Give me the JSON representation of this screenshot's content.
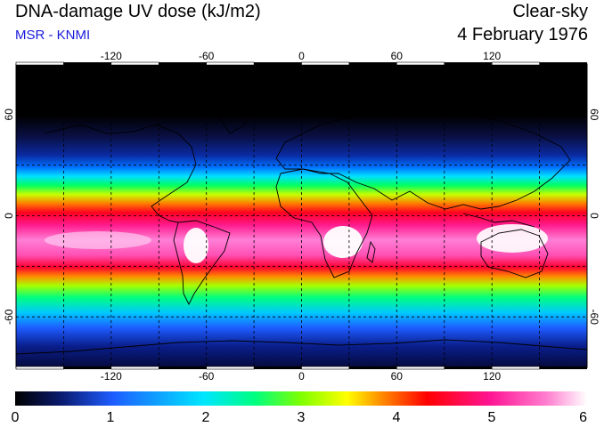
{
  "header": {
    "title": "DNA-damage UV dose (kJ/m2)",
    "subtitle": "MSR - KNMI",
    "condition": "Clear-sky",
    "date": "4 February 1976"
  },
  "map": {
    "projection": "equirectangular",
    "lon_range": [
      -180,
      180
    ],
    "lat_range": [
      -90,
      90
    ],
    "lon_ticks": [
      -120,
      -60,
      0,
      60,
      120
    ],
    "lat_ticks": [
      60,
      0,
      -60
    ],
    "lon_tick_labels": [
      "-120",
      "-60",
      "0",
      "60",
      "120"
    ],
    "lat_tick_labels": [
      "60",
      "0",
      "-60"
    ],
    "grid_spacing_deg": 30,
    "land_outline_color": "#000000"
  },
  "colorbar": {
    "min": 0,
    "max": 6,
    "tick_labels": [
      "0",
      "1",
      "2",
      "3",
      "4",
      "5",
      "6"
    ],
    "colors": [
      "#000000",
      "#0a1a6e",
      "#1e5cff",
      "#00e6ff",
      "#00ff7f",
      "#7fff00",
      "#ffff00",
      "#ff8c00",
      "#ff0000",
      "#ff1493",
      "#ff7fd0",
      "#ffffff"
    ]
  }
}
